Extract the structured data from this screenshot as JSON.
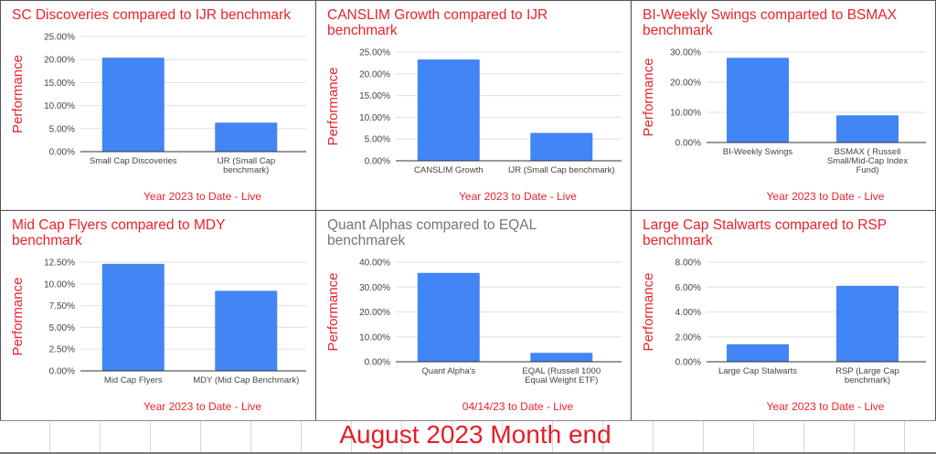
{
  "colors": {
    "bar": "#4285f4",
    "title": "#e8242c",
    "title_gray": "#757575",
    "axis_text": "#444444",
    "grid": "#e0e0e0"
  },
  "banner": {
    "text": "August 2023 Month end"
  },
  "chart_data": [
    {
      "type": "bar",
      "title": "SC Discoveries compared to IJR benchmark",
      "ylabel": "Performance",
      "xlabel": "Year 2023 to Date - Live",
      "categories": [
        [
          "Small Cap Discoveries"
        ],
        [
          "IJR (Small Cap",
          "benchmark)"
        ]
      ],
      "values": [
        20.4,
        6.3
      ],
      "ylim": [
        0,
        25
      ],
      "yticks": [
        "0.00%",
        "5.00%",
        "10.00%",
        "15.00%",
        "20.00%",
        "25.00%"
      ],
      "grid": true
    },
    {
      "type": "bar",
      "title": "CANSLIM Growth compared to IJR benchmark",
      "ylabel": "Performance",
      "xlabel": "Year 2023 to Date - Live",
      "categories": [
        [
          "CANSLIM Growth"
        ],
        [
          "IJR (Small Cap benchmark)"
        ]
      ],
      "values": [
        23.3,
        6.4
      ],
      "ylim": [
        0,
        25
      ],
      "yticks": [
        "0.00%",
        "5.00%",
        "10.00%",
        "15.00%",
        "20.00%",
        "25.00%"
      ],
      "grid": true
    },
    {
      "type": "bar",
      "title": "BI-Weekly Swings comparted to BSMAX benchmark",
      "ylabel": "Performance",
      "xlabel": "Year 2023 to Date - Live",
      "categories": [
        [
          "BI-Weekly Swings"
        ],
        [
          "BSMAX ( Russell",
          "Small/Mid-Cap Index",
          "Fund)"
        ]
      ],
      "values": [
        28.1,
        9.0
      ],
      "ylim": [
        0,
        30
      ],
      "yticks": [
        "0.00%",
        "10.00%",
        "20.00%",
        "30.00%"
      ],
      "grid": true
    },
    {
      "type": "bar",
      "title": "Mid Cap Flyers compared to MDY benchmark",
      "ylabel": "Performance",
      "xlabel": "Year 2023 to Date - Live",
      "categories": [
        [
          "Mid Cap Flyers"
        ],
        [
          "MDY (Mid Cap Benchmark)"
        ]
      ],
      "values": [
        12.3,
        9.2
      ],
      "ylim": [
        0,
        12.5
      ],
      "yticks": [
        "0.00%",
        "2.50%",
        "5.00%",
        "7.50%",
        "10.00%",
        "12.50%"
      ],
      "grid": true
    },
    {
      "type": "bar",
      "title": "Quant Alphas compared to EQAL benchmarek",
      "title_color": "gray",
      "ylabel": "Performance",
      "xlabel": "04/14/23 to Date - Live",
      "categories": [
        [
          "Quant Alpha's"
        ],
        [
          "EQAL (Russell 1000",
          "Equal Weight ETF)"
        ]
      ],
      "values": [
        35.7,
        3.6
      ],
      "ylim": [
        0,
        40
      ],
      "yticks": [
        "0.00%",
        "10.00%",
        "20.00%",
        "30.00%",
        "40.00%"
      ],
      "grid": true
    },
    {
      "type": "bar",
      "title": "Large Cap Stalwarts compared to RSP benchmark",
      "ylabel": "Performance",
      "xlabel": "Year 2023 to Date - Live",
      "categories": [
        [
          "Large Cap Stalwarts"
        ],
        [
          "RSP (Large Cap",
          "benchmark)"
        ]
      ],
      "values": [
        1.4,
        6.1
      ],
      "ylim": [
        0,
        8
      ],
      "yticks": [
        "0.00%",
        "2.00%",
        "4.00%",
        "6.00%",
        "8.00%"
      ],
      "grid": true
    }
  ]
}
